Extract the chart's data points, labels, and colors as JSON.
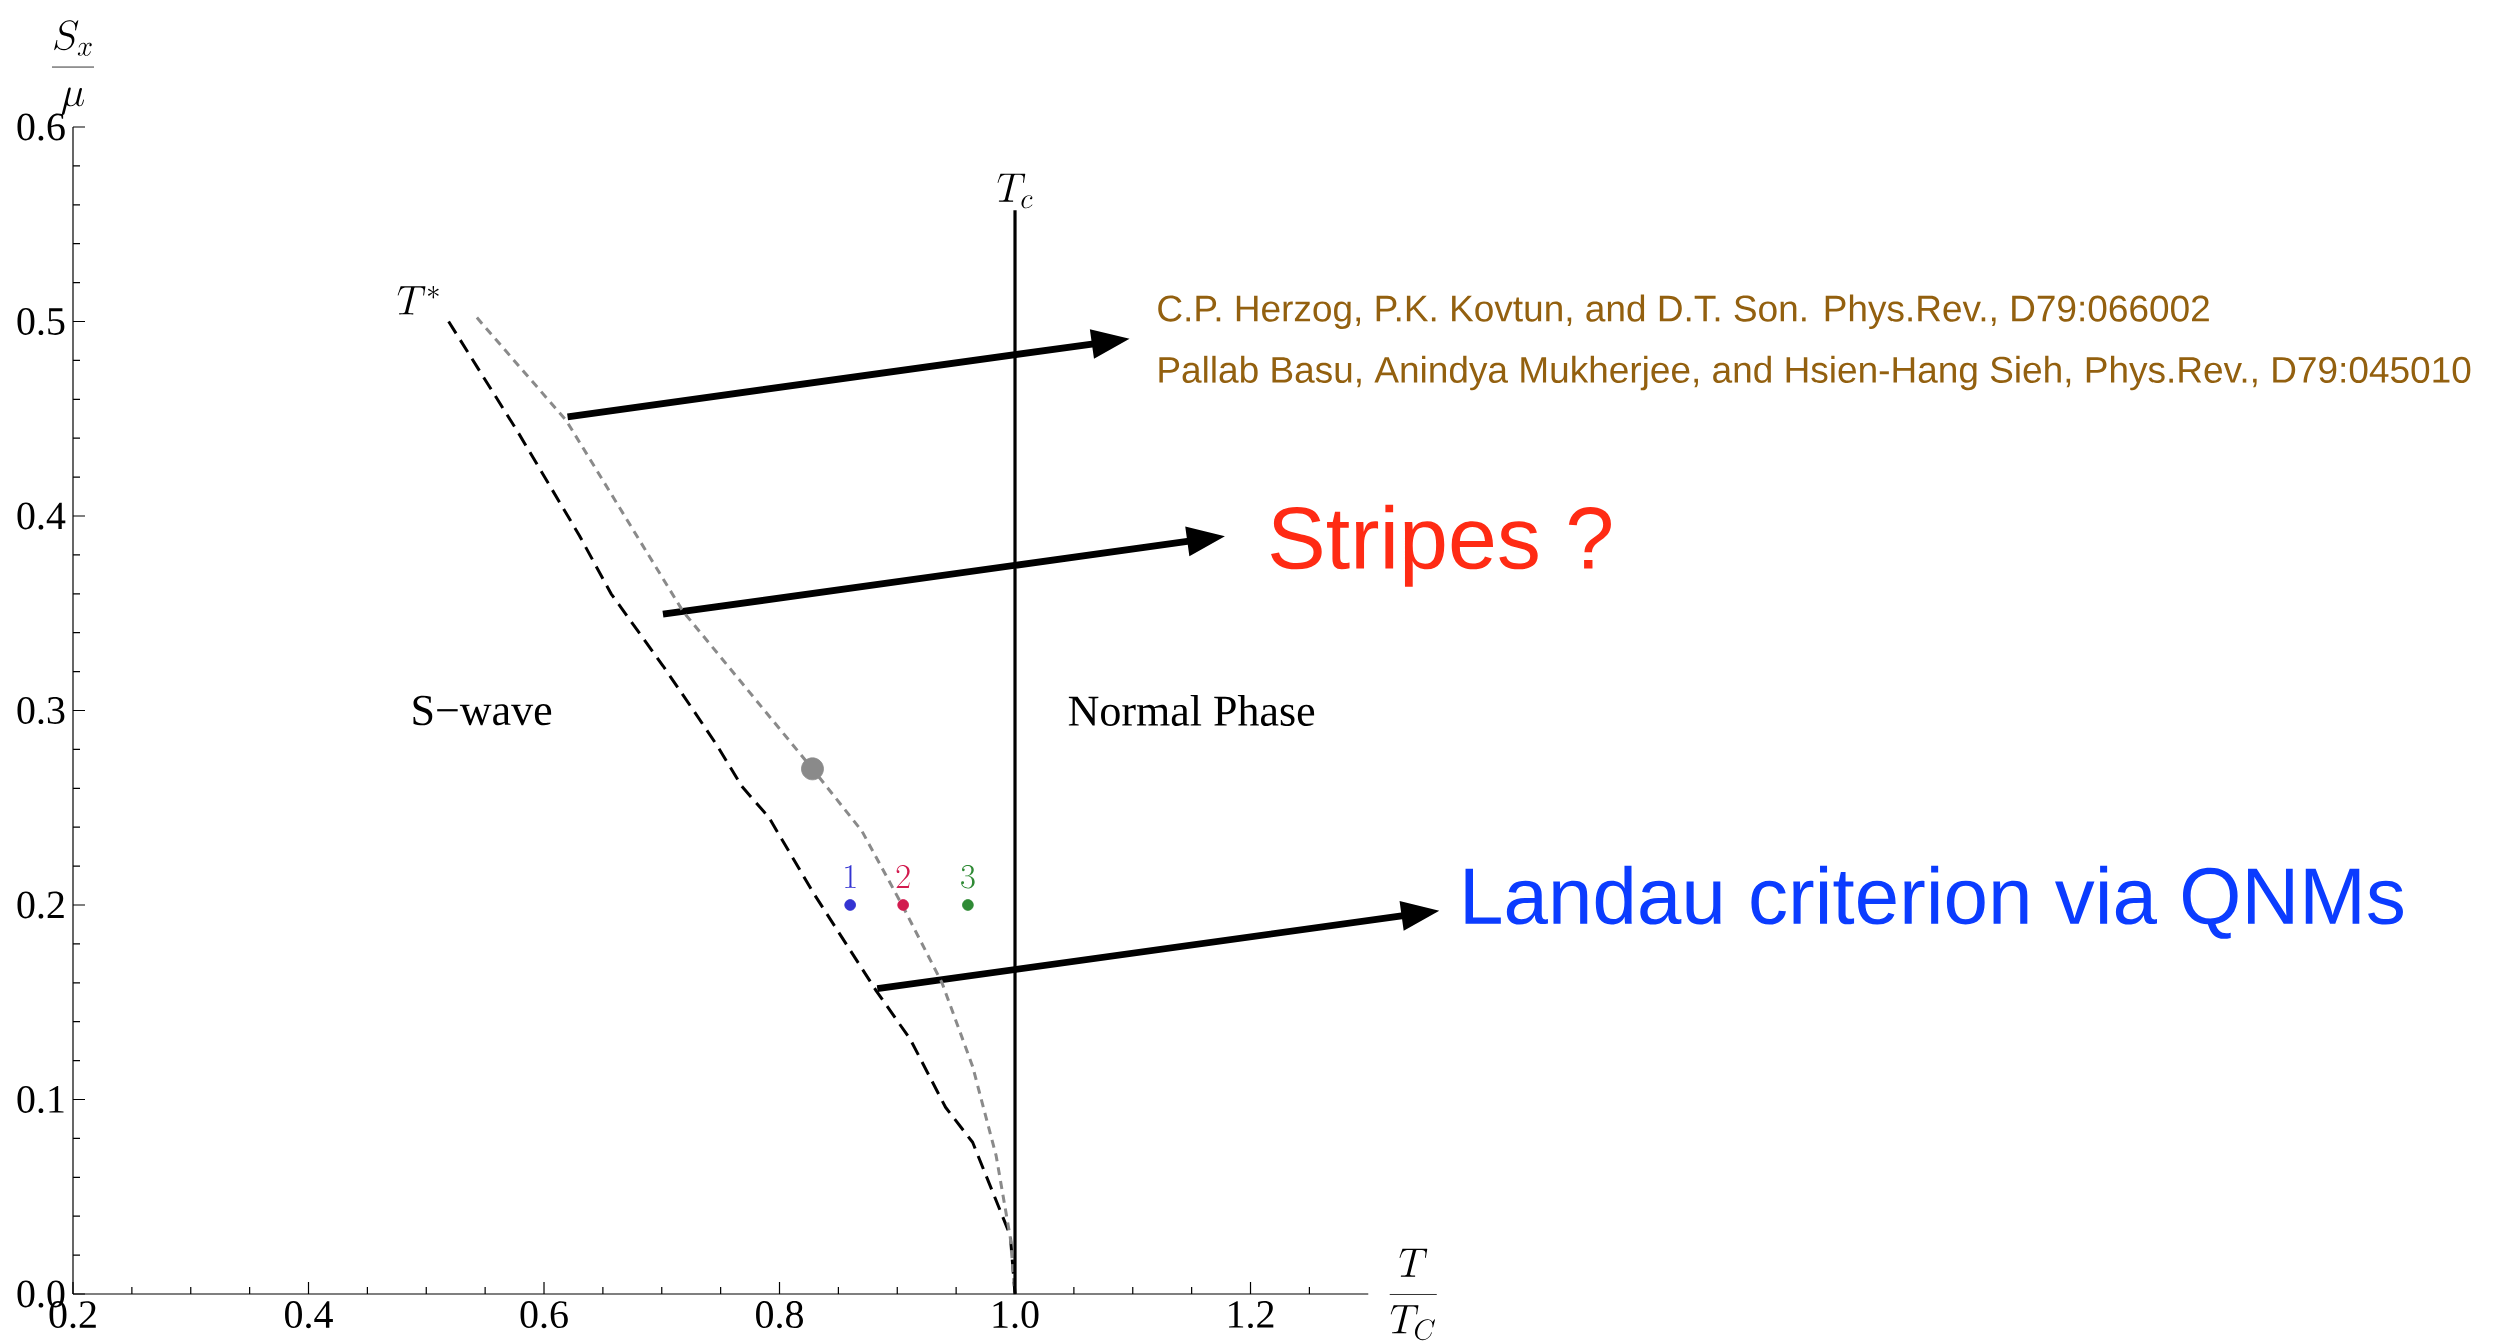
{
  "chart_data": {
    "type": "line",
    "xlabel": "\\frac{T}{T_C}",
    "ylabel": "\\frac{S_x}{\\mu}",
    "xlim": [
      0.2,
      1.3
    ],
    "ylim": [
      0,
      0.6
    ],
    "xticks": [
      0.2,
      {
        "value": 0.25,
        "label": null
      },
      {
        "value": 0.3,
        "label": null
      },
      {
        "value": 0.35,
        "label": null
      },
      0.4,
      {
        "value": 0.45,
        "label": null
      },
      {
        "value": 0.5,
        "label": null
      },
      {
        "value": 0.55,
        "label": null
      },
      0.6,
      {
        "value": 0.65,
        "label": null
      },
      {
        "value": 0.7,
        "label": null
      },
      {
        "value": 0.75,
        "label": null
      },
      0.8,
      {
        "value": 0.85,
        "label": null
      },
      {
        "value": 0.9,
        "label": null
      },
      {
        "value": 0.95,
        "label": null
      },
      {
        "value": 1,
        "label": "1.0"
      },
      {
        "value": 1.05,
        "label": null
      },
      {
        "value": 1.1,
        "label": null
      },
      {
        "value": 1.15,
        "label": null
      },
      1.2,
      {
        "value": 1.25,
        "label": null
      }
    ],
    "yticks": [
      {
        "value": 0,
        "label": "0.0"
      },
      {
        "value": 0.02,
        "label": null
      },
      {
        "value": 0.04,
        "label": null
      },
      {
        "value": 0.06,
        "label": null
      },
      {
        "value": 0.08,
        "label": null
      },
      0.1,
      {
        "value": 0.12,
        "label": null
      },
      {
        "value": 0.14,
        "label": null
      },
      {
        "value": 0.16,
        "label": null
      },
      {
        "value": 0.18,
        "label": null
      },
      0.2,
      {
        "value": 0.22,
        "label": null
      },
      {
        "value": 0.24,
        "label": null
      },
      {
        "value": 0.26,
        "label": null
      },
      {
        "value": 0.28,
        "label": null
      },
      0.3,
      {
        "value": 0.32,
        "label": null
      },
      {
        "value": 0.34,
        "label": null
      },
      {
        "value": 0.36,
        "label": null
      },
      {
        "value": 0.38,
        "label": null
      },
      0.4,
      {
        "value": 0.42,
        "label": null
      },
      {
        "value": 0.44,
        "label": null
      },
      {
        "value": 0.46,
        "label": null
      },
      {
        "value": 0.48,
        "label": null
      },
      0.5,
      {
        "value": 0.52,
        "label": null
      },
      {
        "value": 0.54,
        "label": null
      },
      {
        "value": 0.56,
        "label": null
      },
      {
        "value": 0.58,
        "label": null
      },
      0.6
    ],
    "series": [
      {
        "name": "T^*",
        "color": "#000000",
        "line_style": "dashed",
        "x": [
          0.519,
          0.578,
          0.63,
          0.657,
          0.701,
          0.727,
          0.747,
          0.768,
          0.791,
          0.829,
          0.882,
          0.911,
          0.941,
          0.964,
          0.996,
          1.0
        ],
        "values": [
          0.5,
          0.443,
          0.39,
          0.36,
          0.323,
          0.3,
          0.282,
          0.261,
          0.245,
          0.206,
          0.156,
          0.131,
          0.096,
          0.078,
          0.03,
          0
        ]
      },
      {
        "color": "#8a8a8a",
        "line_style": "dotted",
        "x": [
          0.543,
          0.619,
          0.718,
          0.771,
          0.828,
          0.87,
          0.905,
          0.938,
          0.964,
          0.984,
          0.996,
          1.0
        ],
        "values": [
          0.502,
          0.449,
          0.351,
          0.312,
          0.27,
          0.238,
          0.199,
          0.16,
          0.117,
          0.071,
          0.029,
          0
        ]
      },
      {
        "type": "scatter",
        "color": "#8a8a8a",
        "marker": "circle",
        "x": [
          0.828
        ],
        "values": [
          0.27
        ]
      },
      {
        "type": "scatter",
        "name": "1",
        "color": "#3434d2",
        "marker": "circle",
        "x": [
          0.86
        ],
        "values": [
          0.2
        ]
      },
      {
        "type": "scatter",
        "name": "2",
        "color": "#d21a4e",
        "marker": "circle",
        "x": [
          0.905
        ],
        "values": [
          0.2
        ]
      },
      {
        "type": "scatter",
        "name": "3",
        "color": "#2f8a35",
        "marker": "circle",
        "x": [
          0.96
        ],
        "values": [
          0.2
        ]
      }
    ],
    "ref_lines": [
      {
        "axis": "x",
        "value": 1,
        "label": "T_c",
        "color": "#000000",
        "line_style": "solid"
      }
    ],
    "annotations": [
      "S−wave",
      "Normal Phase",
      "C.P. Herzog, P.K. Kovtun, and D.T. Son.  Phys.Rev., D79:066002",
      "Pallab Basu, Anindya Mukherjee, and Hsien-Hang Sieh, Phys.Rev., D79:045010",
      "Stripes ?",
      "Landau criterion via QNMs"
    ]
  }
}
